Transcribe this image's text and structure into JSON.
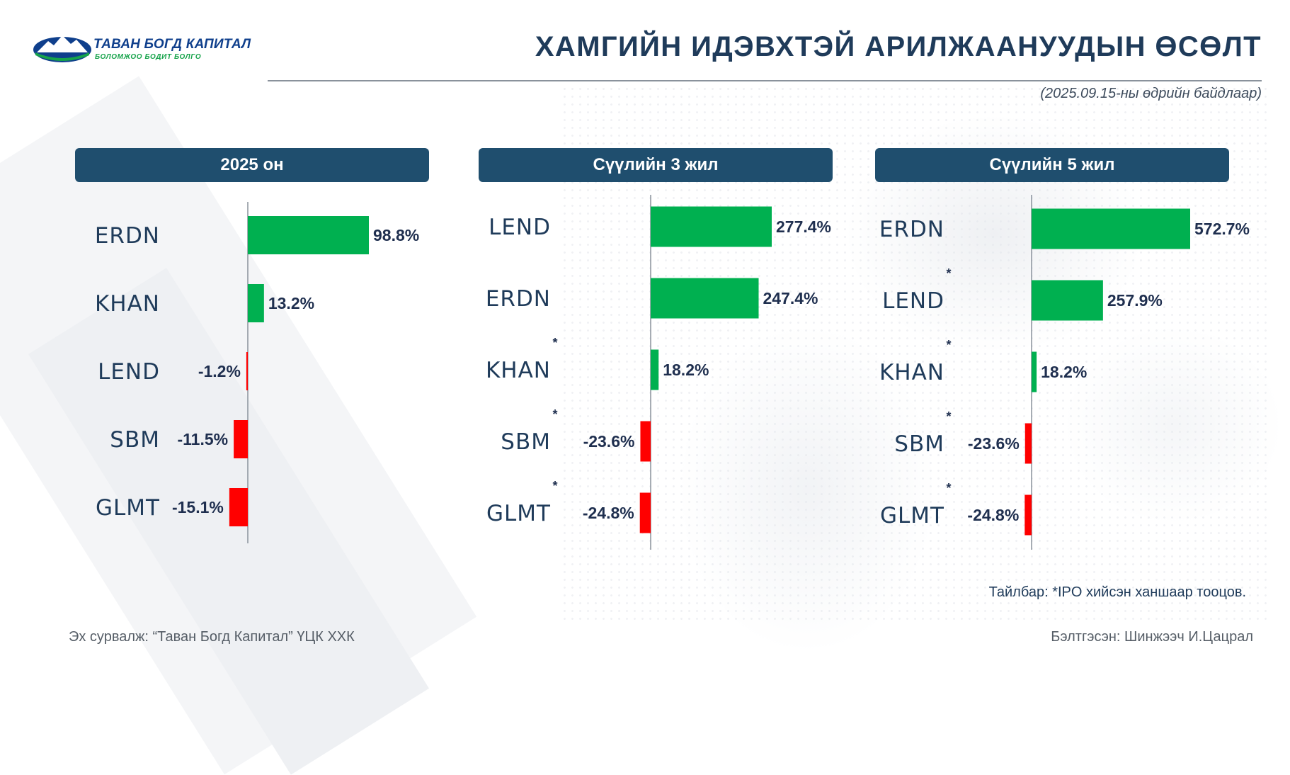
{
  "brand": {
    "name": "ТАВАН БОГД КАПИТАЛ",
    "slogan": "БОЛОМЖОО БОДИТ БОЛГО",
    "primary_color": "#0f3f8c",
    "secondary_color": "#16a34a"
  },
  "title": "ХАМГИЙН ИДЭВХТЭЙ АРИЛЖААНУУДЫН ӨСӨЛТ",
  "subtitle": "(2025.09.15-ны өдрийн байдлаар)",
  "colors": {
    "header_bg": "#1f4e6e",
    "positive": "#00b050",
    "negative": "#ff0000"
  },
  "chart_data": [
    {
      "type": "bar",
      "orientation": "horizontal",
      "title": "2025 он",
      "categories": [
        "ERDN",
        "KHAN",
        "LEND",
        "SBM",
        "GLMT"
      ],
      "values": [
        98.8,
        13.2,
        -1.2,
        -11.5,
        -15.1
      ],
      "labels": [
        "98.8%",
        "13.2%",
        "-1.2%",
        "-11.5%",
        "-15.1%"
      ],
      "ipo_marked": [
        false,
        false,
        false,
        false,
        false
      ]
    },
    {
      "type": "bar",
      "orientation": "horizontal",
      "title": "Сүүлийн 3 жил",
      "categories": [
        "LEND",
        "ERDN",
        "KHAN",
        "SBM",
        "GLMT"
      ],
      "values": [
        277.4,
        247.4,
        18.2,
        -23.6,
        -24.8
      ],
      "labels": [
        "277.4%",
        "247.4%",
        "18.2%",
        "-23.6%",
        "-24.8%"
      ],
      "ipo_marked": [
        false,
        false,
        true,
        true,
        true
      ]
    },
    {
      "type": "bar",
      "orientation": "horizontal",
      "title": "Сүүлийн 5 жил",
      "categories": [
        "ERDN",
        "LEND",
        "KHAN",
        "SBM",
        "GLMT"
      ],
      "values": [
        572.7,
        257.9,
        18.2,
        -23.6,
        -24.8
      ],
      "labels": [
        "572.7%",
        "257.9%",
        "18.2%",
        "-23.6%",
        "-24.8%"
      ],
      "ipo_marked": [
        false,
        true,
        true,
        true,
        true
      ]
    }
  ],
  "ipo_marker": "*",
  "note": "Тайлбар: *IPO хийсэн ханшаар тооцов.",
  "source": "Эх сурвалж: “Таван Богд Капитал” ҮЦК ХХК",
  "prepared_by": "Бэлтгэсэн: Шинжээч И.Цацрал"
}
